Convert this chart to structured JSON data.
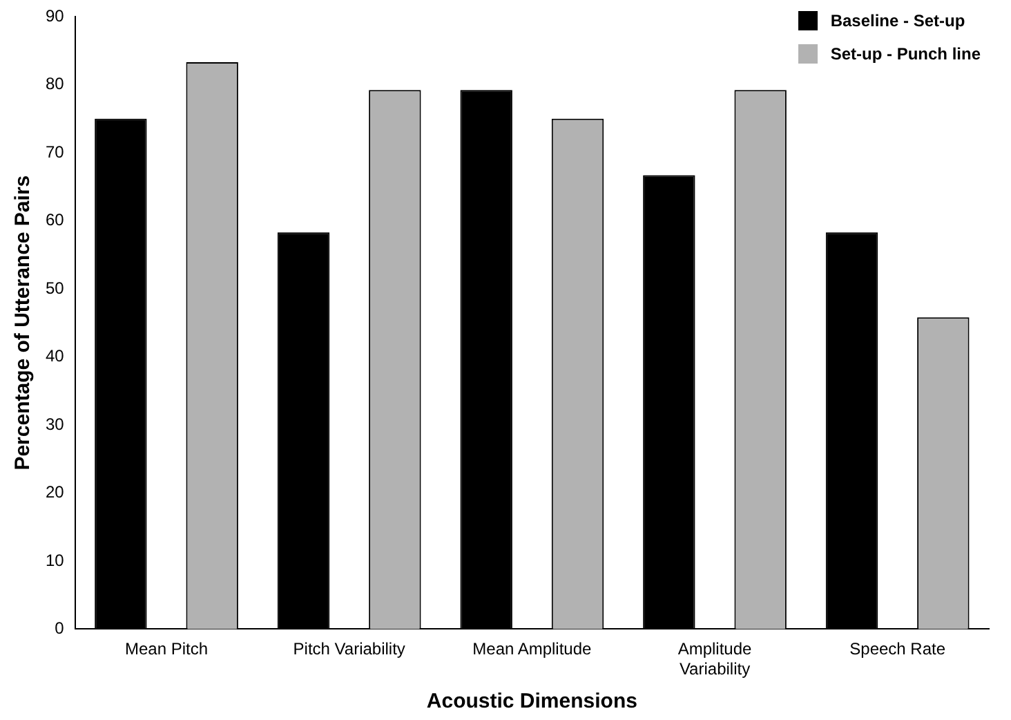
{
  "chart_data": {
    "type": "bar",
    "xlabel": "Acoustic Dimensions",
    "ylabel": "Percentage of Utterance Pairs",
    "categories": [
      "Mean Pitch",
      "Pitch Variability",
      "Mean Amplitude",
      "Amplitude Variability",
      "Speech Rate"
    ],
    "series": [
      {
        "name": "Baseline - Set-up",
        "color": "#000000",
        "values": [
          75,
          58.3,
          79.2,
          66.7,
          58.3
        ]
      },
      {
        "name": "Set-up - Punch line",
        "color": "#b2b2b2",
        "values": [
          83.3,
          79.2,
          75,
          79.2,
          45.8
        ]
      }
    ],
    "ylim": [
      0,
      90
    ],
    "yticks": [
      0,
      10,
      20,
      30,
      40,
      50,
      60,
      70,
      80,
      90
    ],
    "grid": false,
    "legend": "top right"
  }
}
